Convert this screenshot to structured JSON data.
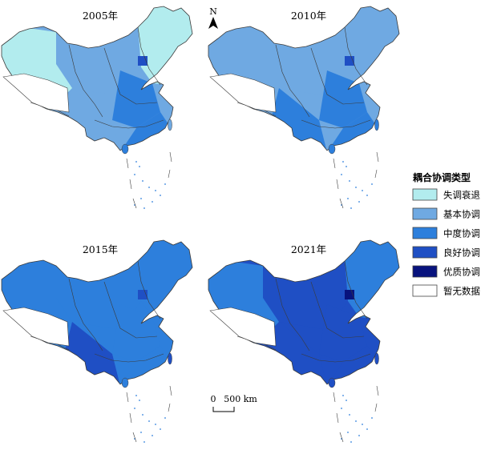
{
  "maps": [
    {
      "year": "2005年",
      "classes": [
        "失调衰退",
        "基本协调",
        "失调衰退",
        "中度协调",
        "良好协调",
        "基本协调",
        "中度协调"
      ]
    },
    {
      "year": "2010年",
      "classes": [
        "基本协调",
        "基本协调",
        "基本协调",
        "中度协调",
        "良好协调",
        "中度协调",
        "中度协调"
      ]
    },
    {
      "year": "2015年",
      "classes": [
        "中度协调",
        "中度协调",
        "中度协调",
        "中度协调",
        "良好协调",
        "良好协调",
        "中度协调"
      ]
    },
    {
      "year": "2021年",
      "classes": [
        "中度协调",
        "良好协调",
        "中度协调",
        "良好协调",
        "优质协调",
        "良好协调",
        "良好协调"
      ]
    }
  ],
  "north_label": "N",
  "scale": {
    "zero": "0",
    "label": "500 km"
  },
  "legend": {
    "title": "耦合协调类型",
    "items": [
      {
        "label": "失调衰退",
        "color": "#b2ecee"
      },
      {
        "label": "基本协调",
        "color": "#6fa9e2"
      },
      {
        "label": "中度协调",
        "color": "#2d7fdc"
      },
      {
        "label": "良好协调",
        "color": "#1f4fc4"
      },
      {
        "label": "优质协调",
        "color": "#08137e"
      },
      {
        "label": "暂无数据",
        "color": "#ffffff"
      }
    ]
  }
}
